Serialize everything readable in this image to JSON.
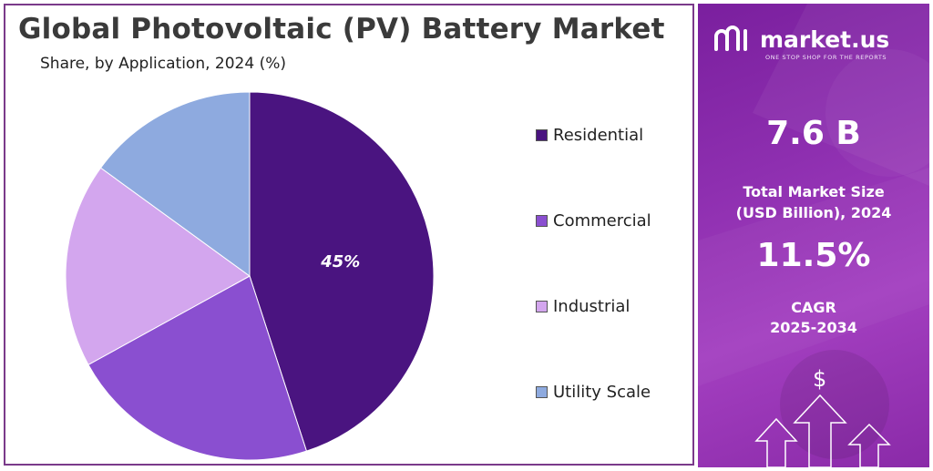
{
  "header": {
    "title": "Global Photovoltaic (PV) Battery Market",
    "subtitle": "Share, by Application, 2024 (%)"
  },
  "chart_data": {
    "type": "pie",
    "categories": [
      "Residential",
      "Commercial",
      "Industrial",
      "Utility Scale"
    ],
    "values": [
      45,
      22,
      18,
      15
    ],
    "data_labels": [
      "45%",
      "",
      "",
      ""
    ],
    "colors": [
      "#4a1480",
      "#8a4fd0",
      "#d3a6ee",
      "#8eaadf"
    ],
    "legend_position": "right",
    "start_angle_deg": 0,
    "direction": "clockwise"
  },
  "sidebar": {
    "brand": {
      "name": "market.us",
      "tagline": "ONE STOP SHOP FOR THE REPORTS"
    },
    "market_size": {
      "value": "7.6 B",
      "label_line1": "Total Market Size",
      "label_line2": "(USD Billion), 2024"
    },
    "cagr": {
      "value": "11.5%",
      "label_line1": "CAGR",
      "label_line2": "2025-2034"
    },
    "icons": [
      "logo-icon",
      "dollar-icon",
      "arrow-up-icon"
    ]
  }
}
